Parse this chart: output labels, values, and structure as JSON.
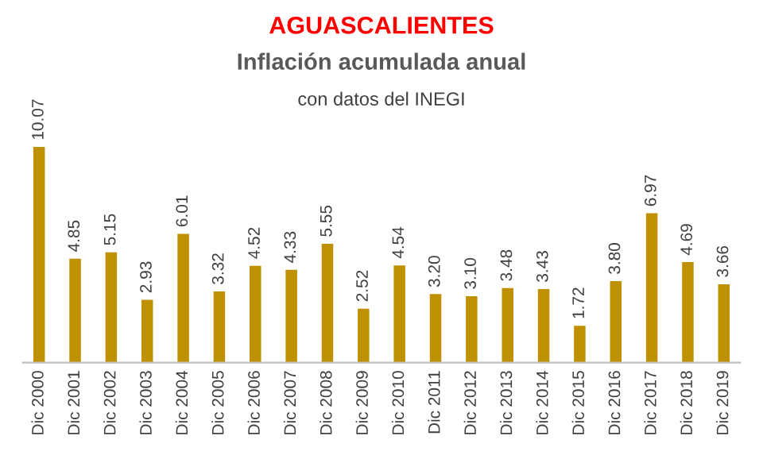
{
  "chart_data": {
    "type": "bar",
    "title": "AGUASCALIENTES",
    "subtitle": "Inflación acumulada anual",
    "annotations": [
      "con datos del INEGI"
    ],
    "categories": [
      "Dic 2000",
      "Dic 2001",
      "Dic 2002",
      "Dic 2003",
      "Dic 2004",
      "Dic 2005",
      "Dic 2006",
      "Dic 2007",
      "Dic 2008",
      "Dic 2009",
      "Dic 2010",
      "Dic 2011",
      "Dic 2012",
      "Dic 2013",
      "Dic 2014",
      "Dic 2015",
      "Dic 2016",
      "Dic 2017",
      "Dic 2018",
      "Dic 2019"
    ],
    "values": [
      10.07,
      4.85,
      5.15,
      2.93,
      6.01,
      3.32,
      4.52,
      4.33,
      5.55,
      2.52,
      4.54,
      3.2,
      3.1,
      3.48,
      3.43,
      1.72,
      3.8,
      6.97,
      4.69,
      3.66
    ],
    "value_labels": [
      "10.07",
      "4.85",
      "5.15",
      "2.93",
      "6.01",
      "3.32",
      "4.52",
      "4.33",
      "5.55",
      "2.52",
      "4.54",
      "3.20",
      "3.10",
      "3.48",
      "3.43",
      "1.72",
      "3.80",
      "6.97",
      "4.69",
      "3.66"
    ],
    "color": "#bf9000",
    "grid": false,
    "legend": false
  }
}
